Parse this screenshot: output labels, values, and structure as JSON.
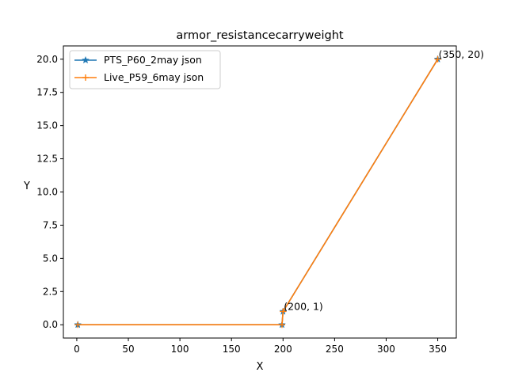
{
  "chart_data": {
    "type": "line",
    "title": "armor_resistancecarryweight",
    "xlabel": "X",
    "ylabel": "Y",
    "xlim": [
      -13,
      368
    ],
    "ylim": [
      -1,
      21
    ],
    "xticks": [
      0,
      50,
      100,
      150,
      200,
      250,
      300,
      350
    ],
    "yticks": [
      0.0,
      2.5,
      5.0,
      7.5,
      10.0,
      12.5,
      15.0,
      17.5,
      20.0
    ],
    "grid": false,
    "legend_position": "top-left",
    "series": [
      {
        "name": "PTS_P60_2may json",
        "color": "#1f77b4",
        "marker": "star",
        "x": [
          1,
          199,
          200,
          350
        ],
        "y": [
          0,
          0,
          1,
          20
        ]
      },
      {
        "name": "Live_P59_6may json",
        "color": "#ff7f0e",
        "marker": "plus",
        "x": [
          1,
          199,
          200,
          350
        ],
        "y": [
          0,
          0,
          1,
          20
        ]
      }
    ],
    "annotations": [
      {
        "x": 200,
        "y": 1,
        "text": "(200, 1)"
      },
      {
        "x": 350,
        "y": 20,
        "text": "(350, 20)"
      }
    ]
  }
}
